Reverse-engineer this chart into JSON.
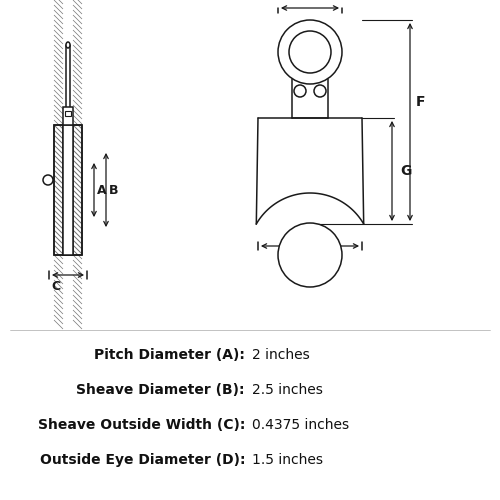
{
  "bg_color": "#ffffff",
  "line_color": "#1a1a1a",
  "text_color": "#111111",
  "specs": [
    {
      "label": "Pitch Diameter (A):",
      "value": "2 inches"
    },
    {
      "label": "Sheave Diameter (B):",
      "value": "2.5 inches"
    },
    {
      "label": "Sheave Outside Width (C):",
      "value": "0.4375 inches"
    },
    {
      "label": "Outside Eye Diameter (D):",
      "value": "1.5 inches"
    }
  ],
  "fig_width": 5.0,
  "fig_height": 5.0,
  "dpi": 100
}
